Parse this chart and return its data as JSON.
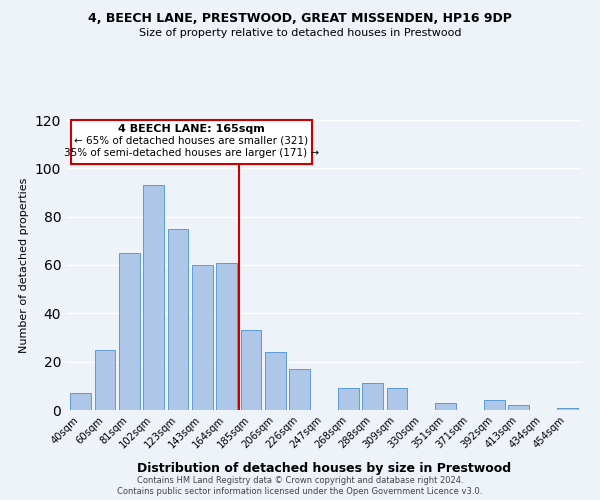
{
  "title1": "4, BEECH LANE, PRESTWOOD, GREAT MISSENDEN, HP16 9DP",
  "title2": "Size of property relative to detached houses in Prestwood",
  "xlabel": "Distribution of detached houses by size in Prestwood",
  "ylabel": "Number of detached properties",
  "bar_labels": [
    "40sqm",
    "60sqm",
    "81sqm",
    "102sqm",
    "123sqm",
    "143sqm",
    "164sqm",
    "185sqm",
    "206sqm",
    "226sqm",
    "247sqm",
    "268sqm",
    "288sqm",
    "309sqm",
    "330sqm",
    "351sqm",
    "371sqm",
    "392sqm",
    "413sqm",
    "434sqm",
    "454sqm"
  ],
  "bar_heights": [
    7,
    25,
    65,
    93,
    75,
    60,
    61,
    33,
    24,
    17,
    0,
    9,
    11,
    9,
    0,
    3,
    0,
    4,
    2,
    0,
    1
  ],
  "bar_color": "#aec6e8",
  "bar_edge_color": "#5b9bd5",
  "vline_x": 6.5,
  "vline_color": "#cc0000",
  "annotation_title": "4 BEECH LANE: 165sqm",
  "annotation_line1": "← 65% of detached houses are smaller (321)",
  "annotation_line2": "35% of semi-detached houses are larger (171) →",
  "annotation_box_color": "#ffffff",
  "annotation_box_edge": "#cc0000",
  "ylim": [
    0,
    120
  ],
  "yticks": [
    0,
    20,
    40,
    60,
    80,
    100,
    120
  ],
  "footer1": "Contains HM Land Registry data © Crown copyright and database right 2024.",
  "footer2": "Contains public sector information licensed under the Open Government Licence v3.0.",
  "bg_color": "#eef2f9"
}
